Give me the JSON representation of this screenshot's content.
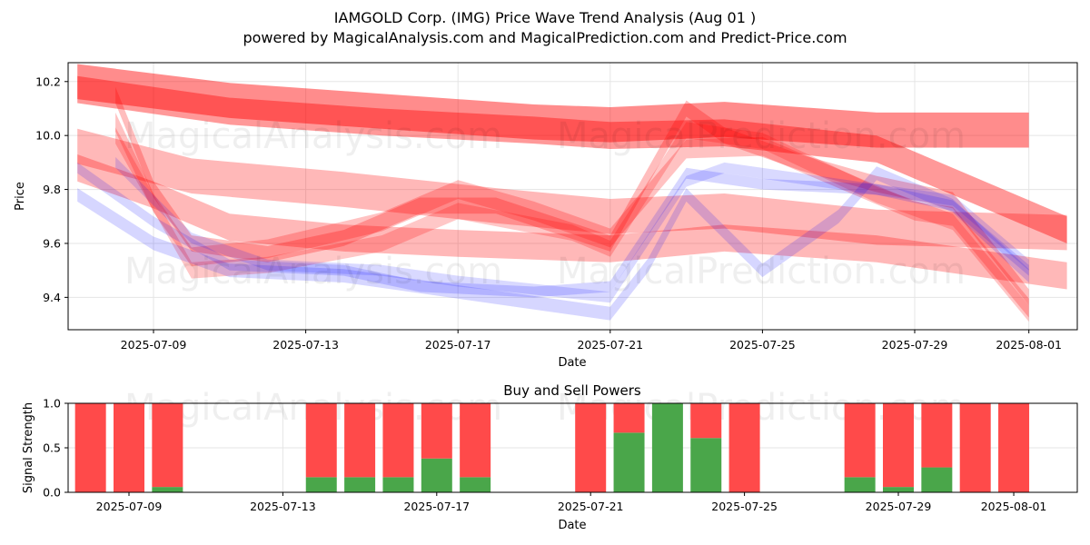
{
  "title_line1": "IAMGOLD Corp. (IMG) Price Wave Trend Analysis (Aug 01 )",
  "title_line2": "powered by MagicalAnalysis.com and MagicalPrediction.com and Predict-Price.com",
  "watermarks": [
    "MagicalAnalysis.com",
    "MagicalPrediction.com"
  ],
  "colors": {
    "sell": "#ff0000",
    "buy": "#0000ff",
    "sell_bar": "#ff4a4a",
    "buy_bar": "#4aa64a"
  },
  "chart_data": [
    {
      "type": "area",
      "title": "",
      "xlabel": "Date",
      "ylabel": "Price",
      "x_ticks": [
        "2025-07-09",
        "2025-07-13",
        "2025-07-17",
        "2025-07-21",
        "2025-07-25",
        "2025-07-29",
        "2025-08-01"
      ],
      "y_ticks": [
        9.4,
        9.6,
        9.8,
        10.0,
        10.2
      ],
      "xlim": [
        "2025-07-06",
        "2025-08-02"
      ],
      "ylim": [
        9.28,
        10.27
      ],
      "grid": true,
      "series": [
        {
          "color": "sell",
          "opacity": 0.45,
          "width": 0.13,
          "points": [
            [
              "2025-07-07",
              10.2
            ],
            [
              "2025-07-11",
              10.13
            ],
            [
              "2025-07-15",
              10.09
            ],
            [
              "2025-07-19",
              10.05
            ],
            [
              "2025-07-21",
              10.04
            ],
            [
              "2025-07-24",
              10.06
            ],
            [
              "2025-07-28",
              10.02
            ],
            [
              "2025-08-01",
              10.02
            ]
          ]
        },
        {
          "color": "sell",
          "opacity": 0.4,
          "width": 0.1,
          "points": [
            [
              "2025-07-07",
              10.17
            ],
            [
              "2025-07-11",
              10.09
            ],
            [
              "2025-07-15",
              10.05
            ],
            [
              "2025-07-19",
              10.02
            ],
            [
              "2025-07-21",
              10.0
            ],
            [
              "2025-07-24",
              10.01
            ],
            [
              "2025-07-28",
              9.95
            ],
            [
              "2025-08-02",
              9.65
            ]
          ]
        },
        {
          "color": "sell",
          "opacity": 0.28,
          "width": 0.13,
          "points": [
            [
              "2025-07-07",
              9.96
            ],
            [
              "2025-07-10",
              9.85
            ],
            [
              "2025-07-14",
              9.8
            ],
            [
              "2025-07-18",
              9.74
            ],
            [
              "2025-07-21",
              9.7
            ],
            [
              "2025-07-24",
              9.72
            ],
            [
              "2025-07-28",
              9.66
            ],
            [
              "2025-08-02",
              9.64
            ]
          ]
        },
        {
          "color": "sell",
          "opacity": 0.28,
          "width": 0.1,
          "points": [
            [
              "2025-07-07",
              9.88
            ],
            [
              "2025-07-09",
              9.78
            ],
            [
              "2025-07-11",
              9.66
            ],
            [
              "2025-07-14",
              9.62
            ],
            [
              "2025-07-17",
              9.6
            ],
            [
              "2025-07-21",
              9.58
            ],
            [
              "2025-07-24",
              9.62
            ],
            [
              "2025-07-28",
              9.58
            ],
            [
              "2025-08-02",
              9.48
            ]
          ]
        },
        {
          "color": "sell",
          "opacity": 0.26,
          "width": 0.06,
          "points": [
            [
              "2025-07-08",
              10.15
            ],
            [
              "2025-07-09",
              9.8
            ],
            [
              "2025-07-10",
              9.6
            ],
            [
              "2025-07-12",
              9.56
            ],
            [
              "2025-07-14",
              9.62
            ],
            [
              "2025-07-16",
              9.74
            ],
            [
              "2025-07-18",
              9.74
            ],
            [
              "2025-07-21",
              9.6
            ],
            [
              "2025-07-22",
              9.85
            ],
            [
              "2025-07-23",
              10.1
            ],
            [
              "2025-07-24",
              10.0
            ],
            [
              "2025-07-26",
              9.9
            ],
            [
              "2025-07-28",
              9.82
            ],
            [
              "2025-07-30",
              9.76
            ],
            [
              "2025-08-01",
              9.4
            ]
          ]
        },
        {
          "color": "sell",
          "opacity": 0.24,
          "width": 0.07,
          "points": [
            [
              "2025-07-08",
              10.05
            ],
            [
              "2025-07-09",
              9.75
            ],
            [
              "2025-07-10",
              9.55
            ],
            [
              "2025-07-12",
              9.58
            ],
            [
              "2025-07-15",
              9.68
            ],
            [
              "2025-07-17",
              9.8
            ],
            [
              "2025-07-19",
              9.72
            ],
            [
              "2025-07-21",
              9.62
            ],
            [
              "2025-07-23",
              9.95
            ],
            [
              "2025-07-25",
              9.96
            ],
            [
              "2025-07-27",
              9.84
            ],
            [
              "2025-07-29",
              9.72
            ],
            [
              "2025-07-30",
              9.7
            ],
            [
              "2025-08-01",
              9.36
            ]
          ]
        },
        {
          "color": "sell",
          "opacity": 0.22,
          "width": 0.06,
          "points": [
            [
              "2025-07-08",
              10.0
            ],
            [
              "2025-07-10",
              9.5
            ],
            [
              "2025-07-12",
              9.52
            ],
            [
              "2025-07-15",
              9.6
            ],
            [
              "2025-07-17",
              9.72
            ],
            [
              "2025-07-20",
              9.64
            ],
            [
              "2025-07-21",
              9.58
            ],
            [
              "2025-07-23",
              10.02
            ],
            [
              "2025-07-25",
              9.98
            ],
            [
              "2025-07-28",
              9.78
            ],
            [
              "2025-07-30",
              9.68
            ],
            [
              "2025-08-01",
              9.34
            ]
          ]
        },
        {
          "color": "buy",
          "opacity": 0.16,
          "width": 0.05,
          "points": [
            [
              "2025-07-07",
              9.78
            ],
            [
              "2025-07-09",
              9.6
            ],
            [
              "2025-07-11",
              9.5
            ],
            [
              "2025-07-14",
              9.48
            ],
            [
              "2025-07-17",
              9.42
            ],
            [
              "2025-07-19",
              9.38
            ],
            [
              "2025-07-21",
              9.34
            ],
            [
              "2025-07-22",
              9.52
            ],
            [
              "2025-07-23",
              9.78
            ],
            [
              "2025-07-25",
              9.5
            ],
            [
              "2025-07-27",
              9.7
            ],
            [
              "2025-07-28",
              9.86
            ],
            [
              "2025-07-30",
              9.74
            ],
            [
              "2025-08-01",
              9.48
            ]
          ]
        },
        {
          "color": "buy",
          "opacity": 0.16,
          "width": 0.04,
          "points": [
            [
              "2025-07-07",
              9.88
            ],
            [
              "2025-07-09",
              9.68
            ],
            [
              "2025-07-11",
              9.52
            ],
            [
              "2025-07-14",
              9.5
            ],
            [
              "2025-07-16",
              9.44
            ],
            [
              "2025-07-19",
              9.42
            ],
            [
              "2025-07-21",
              9.44
            ],
            [
              "2025-07-23",
              9.86
            ],
            [
              "2025-07-25",
              9.82
            ],
            [
              "2025-07-28",
              9.8
            ],
            [
              "2025-07-30",
              9.74
            ],
            [
              "2025-08-01",
              9.5
            ]
          ]
        },
        {
          "color": "buy",
          "opacity": 0.15,
          "width": 0.04,
          "points": [
            [
              "2025-07-08",
              9.9
            ],
            [
              "2025-07-10",
              9.62
            ],
            [
              "2025-07-12",
              9.52
            ],
            [
              "2025-07-15",
              9.5
            ],
            [
              "2025-07-17",
              9.46
            ],
            [
              "2025-07-21",
              9.4
            ],
            [
              "2025-07-23",
              9.83
            ],
            [
              "2025-07-24",
              9.88
            ],
            [
              "2025-07-27",
              9.82
            ],
            [
              "2025-07-30",
              9.76
            ],
            [
              "2025-08-01",
              9.52
            ]
          ]
        }
      ]
    },
    {
      "type": "bar",
      "title": "Buy and Sell Powers",
      "xlabel": "Date",
      "ylabel": "Signal Strength",
      "x_ticks": [
        "2025-07-09",
        "2025-07-13",
        "2025-07-17",
        "2025-07-21",
        "2025-07-25",
        "2025-07-29",
        "2025-08-01"
      ],
      "y_ticks": [
        0.0,
        0.5,
        1.0
      ],
      "ylim": [
        0,
        1
      ],
      "grid": true,
      "categories": [
        "2025-07-08",
        "2025-07-09",
        "2025-07-10",
        "2025-07-14",
        "2025-07-15",
        "2025-07-16",
        "2025-07-17",
        "2025-07-18",
        "2025-07-21",
        "2025-07-22",
        "2025-07-23",
        "2025-07-24",
        "2025-07-25",
        "2025-07-28",
        "2025-07-29",
        "2025-07-30",
        "2025-07-31",
        "2025-08-01"
      ],
      "series": [
        {
          "name": "Buy",
          "values": [
            0.0,
            0.0,
            0.06,
            0.17,
            0.17,
            0.17,
            0.38,
            0.17,
            0.0,
            0.67,
            1.0,
            0.61,
            0.0,
            0.17,
            0.06,
            0.28,
            0.0,
            0.0
          ]
        },
        {
          "name": "Sell",
          "values": [
            1.0,
            1.0,
            0.94,
            0.83,
            0.83,
            0.83,
            0.62,
            0.83,
            1.0,
            0.33,
            0.0,
            0.39,
            1.0,
            0.83,
            0.94,
            0.72,
            1.0,
            1.0
          ]
        }
      ]
    }
  ]
}
